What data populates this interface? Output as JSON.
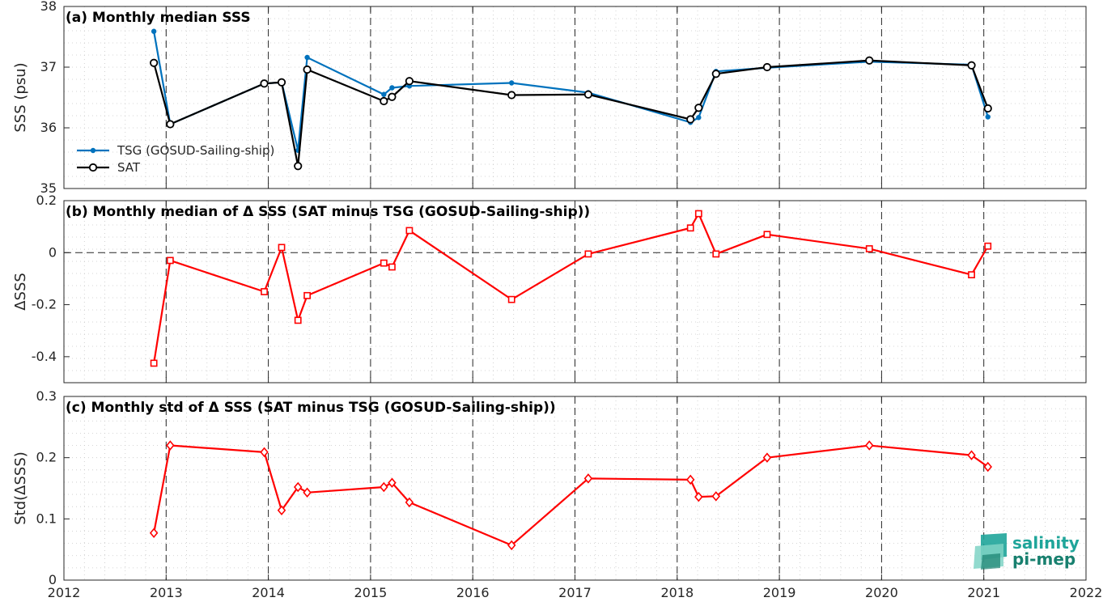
{
  "x_axis": {
    "ticks": [
      "2012",
      "2013",
      "2014",
      "2015",
      "2016",
      "2017",
      "2018",
      "2019",
      "2020",
      "2021",
      "2022"
    ],
    "xlim": [
      2012,
      2022
    ]
  },
  "chart_data": [
    {
      "type": "line",
      "title": "(a) Monthly median SSS",
      "ylabel": "SSS (psu)",
      "ylim": [
        35,
        38
      ],
      "yticks": [
        "35",
        "36",
        "37",
        "38"
      ],
      "legend_placement": "lower-left",
      "series": [
        {
          "name": "TSG (GOSUD-Sailing-ship)",
          "color": "#0072BD",
          "marker": "dot",
          "x": [
            2012.88,
            2013.04,
            2013.96,
            2014.13,
            2014.29,
            2014.38,
            2015.13,
            2015.21,
            2015.38,
            2016.38,
            2017.13,
            2018.13,
            2018.21,
            2018.38,
            2018.88,
            2019.88,
            2020.88,
            2021.04
          ],
          "y": [
            37.59,
            36.06,
            36.73,
            36.75,
            35.63,
            37.16,
            36.55,
            36.66,
            36.69,
            36.74,
            36.58,
            36.09,
            36.17,
            36.93,
            36.99,
            37.09,
            37.04,
            36.18
          ]
        },
        {
          "name": "SAT",
          "color": "#000000",
          "marker": "circle",
          "x": [
            2012.88,
            2013.04,
            2013.96,
            2014.13,
            2014.29,
            2014.38,
            2015.13,
            2015.21,
            2015.38,
            2016.38,
            2017.13,
            2018.13,
            2018.21,
            2018.38,
            2018.88,
            2019.88,
            2020.88,
            2021.04
          ],
          "y": [
            37.07,
            36.06,
            36.73,
            36.75,
            35.37,
            36.96,
            36.44,
            36.51,
            36.77,
            36.54,
            36.55,
            36.14,
            36.33,
            36.89,
            37.0,
            37.11,
            37.03,
            36.32
          ]
        }
      ]
    },
    {
      "type": "line",
      "title": "(b) Monthly median of Δ SSS (SAT minus TSG (GOSUD-Sailing-ship))",
      "ylabel": "ΔSSS",
      "ylim": [
        -0.5,
        0.2
      ],
      "yticks": [
        "-0.4",
        "-0.2",
        "0",
        "0.2"
      ],
      "zero_line": true,
      "series": [
        {
          "color": "#FF0000",
          "marker": "square",
          "x": [
            2012.88,
            2013.04,
            2013.96,
            2014.13,
            2014.29,
            2014.38,
            2015.13,
            2015.21,
            2015.38,
            2016.38,
            2017.13,
            2018.13,
            2018.21,
            2018.38,
            2018.88,
            2019.88,
            2020.88,
            2021.04
          ],
          "y": [
            -0.425,
            -0.03,
            -0.15,
            0.02,
            -0.26,
            -0.165,
            -0.04,
            -0.055,
            0.085,
            -0.18,
            -0.005,
            0.095,
            0.15,
            -0.005,
            0.07,
            0.015,
            -0.085,
            0.025
          ]
        }
      ]
    },
    {
      "type": "line",
      "title": "(c) Monthly std of Δ SSS (SAT minus TSG (GOSUD-Sailing-ship))",
      "ylabel": "Std(ΔSSS)",
      "ylim": [
        0,
        0.3
      ],
      "yticks": [
        "0",
        "0.1",
        "0.2",
        "0.3"
      ],
      "series": [
        {
          "color": "#FF0000",
          "marker": "diamond",
          "x": [
            2012.88,
            2013.04,
            2013.96,
            2014.13,
            2014.29,
            2014.38,
            2015.13,
            2015.21,
            2015.38,
            2016.38,
            2017.13,
            2018.13,
            2018.21,
            2018.38,
            2018.88,
            2019.88,
            2020.88,
            2021.04
          ],
          "y": [
            0.077,
            0.22,
            0.209,
            0.114,
            0.152,
            0.143,
            0.152,
            0.159,
            0.127,
            0.057,
            0.166,
            0.164,
            0.136,
            0.137,
            0.2,
            0.22,
            0.204,
            0.185
          ]
        }
      ]
    }
  ],
  "logo": {
    "line1": "salinity",
    "line2": "pi-mep",
    "icon": "salinity-pi-mep-logo-icon",
    "colors": [
      "#1fa59a",
      "#18806f",
      "#7fd3c5"
    ]
  }
}
